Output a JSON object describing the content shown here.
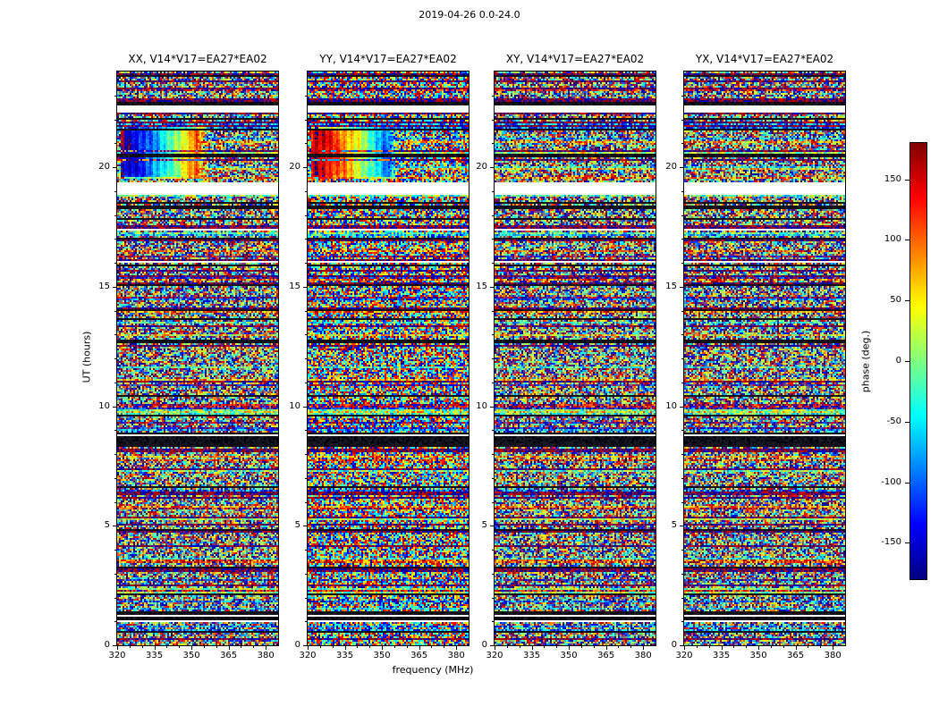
{
  "figure": {
    "suptitle": "2019-04-26 0.0-24.0",
    "xlabel": "frequency (MHz)",
    "ylabel": "UT (hours)"
  },
  "chart_data": {
    "type": "heatmap",
    "description": "Four dynamic-spectrum panels of interferometric visibility phase (baseline V14*V17 = EA27*EA02) versus frequency and UT time for polarizations XX, YY, XY, YX. Content is mostly random phase noise (jet colormap) with horizontal data-gap and flagged (black) time rows; a smooth coherent phase sweep appears near UT 19.5-21.8 below ~357 MHz in XX (blue-to-red with frequency) and YY (red-to-blue).",
    "panels": [
      {
        "id": "xx",
        "title": "XX, V14*V17=EA27*EA02",
        "seed": 101,
        "coherent_feature": true,
        "feature_sign": 1
      },
      {
        "id": "yy",
        "title": "YY, V14*V17=EA27*EA02",
        "seed": 202,
        "coherent_feature": true,
        "feature_sign": -1
      },
      {
        "id": "xy",
        "title": "XY, V14*V17=EA27*EA02",
        "seed": 303,
        "coherent_feature": false,
        "feature_sign": 1
      },
      {
        "id": "yx",
        "title": "YX, V14*V17=EA27*EA02",
        "seed": 404,
        "coherent_feature": false,
        "feature_sign": 1
      }
    ],
    "x": {
      "label": "frequency (MHz)",
      "range": [
        320,
        385
      ],
      "major_ticks": [
        320,
        335,
        350,
        365,
        380
      ],
      "minor_tick_step": 5
    },
    "y": {
      "label": "UT (hours)",
      "range": [
        0,
        24
      ],
      "major_ticks": [
        0,
        5,
        10,
        15,
        20
      ],
      "minor_tick_step": 1
    },
    "colorbar": {
      "label": "phase (deg.)",
      "range": [
        -180,
        180
      ],
      "ticks": [
        150,
        100,
        50,
        0,
        -50,
        -100,
        -150
      ],
      "colormap": "jet"
    },
    "features": {
      "coherent_window": {
        "ut": [
          19.45,
          21.75
        ],
        "freq": [
          320.5,
          357.0
        ]
      },
      "white_gaps_ut": [
        [
          18.85,
          19.35
        ],
        [
          22.25,
          22.55
        ],
        [
          1.18,
          1.27
        ],
        [
          8.76,
          8.84
        ]
      ],
      "dark_bands_ut": [
        [
          23.78,
          23.86
        ],
        [
          22.55,
          22.76
        ],
        [
          21.97,
          22.07
        ],
        [
          21.06,
          21.12
        ],
        [
          20.52,
          20.58
        ],
        [
          18.48,
          18.54
        ],
        [
          18.25,
          18.36
        ],
        [
          17.77,
          17.84
        ],
        [
          16.95,
          17.02
        ],
        [
          15.06,
          15.13
        ],
        [
          13.97,
          14.05
        ],
        [
          12.66,
          12.73
        ],
        [
          10.37,
          10.44
        ],
        [
          9.55,
          9.62
        ],
        [
          8.3,
          8.74
        ],
        [
          6.55,
          6.62
        ],
        [
          4.76,
          4.84
        ],
        [
          3.2,
          3.26
        ],
        [
          2.06,
          2.14
        ],
        [
          1.28,
          1.41
        ],
        [
          1.03,
          1.17
        ],
        [
          0.52,
          0.58
        ]
      ],
      "row_seed": 77
    }
  }
}
